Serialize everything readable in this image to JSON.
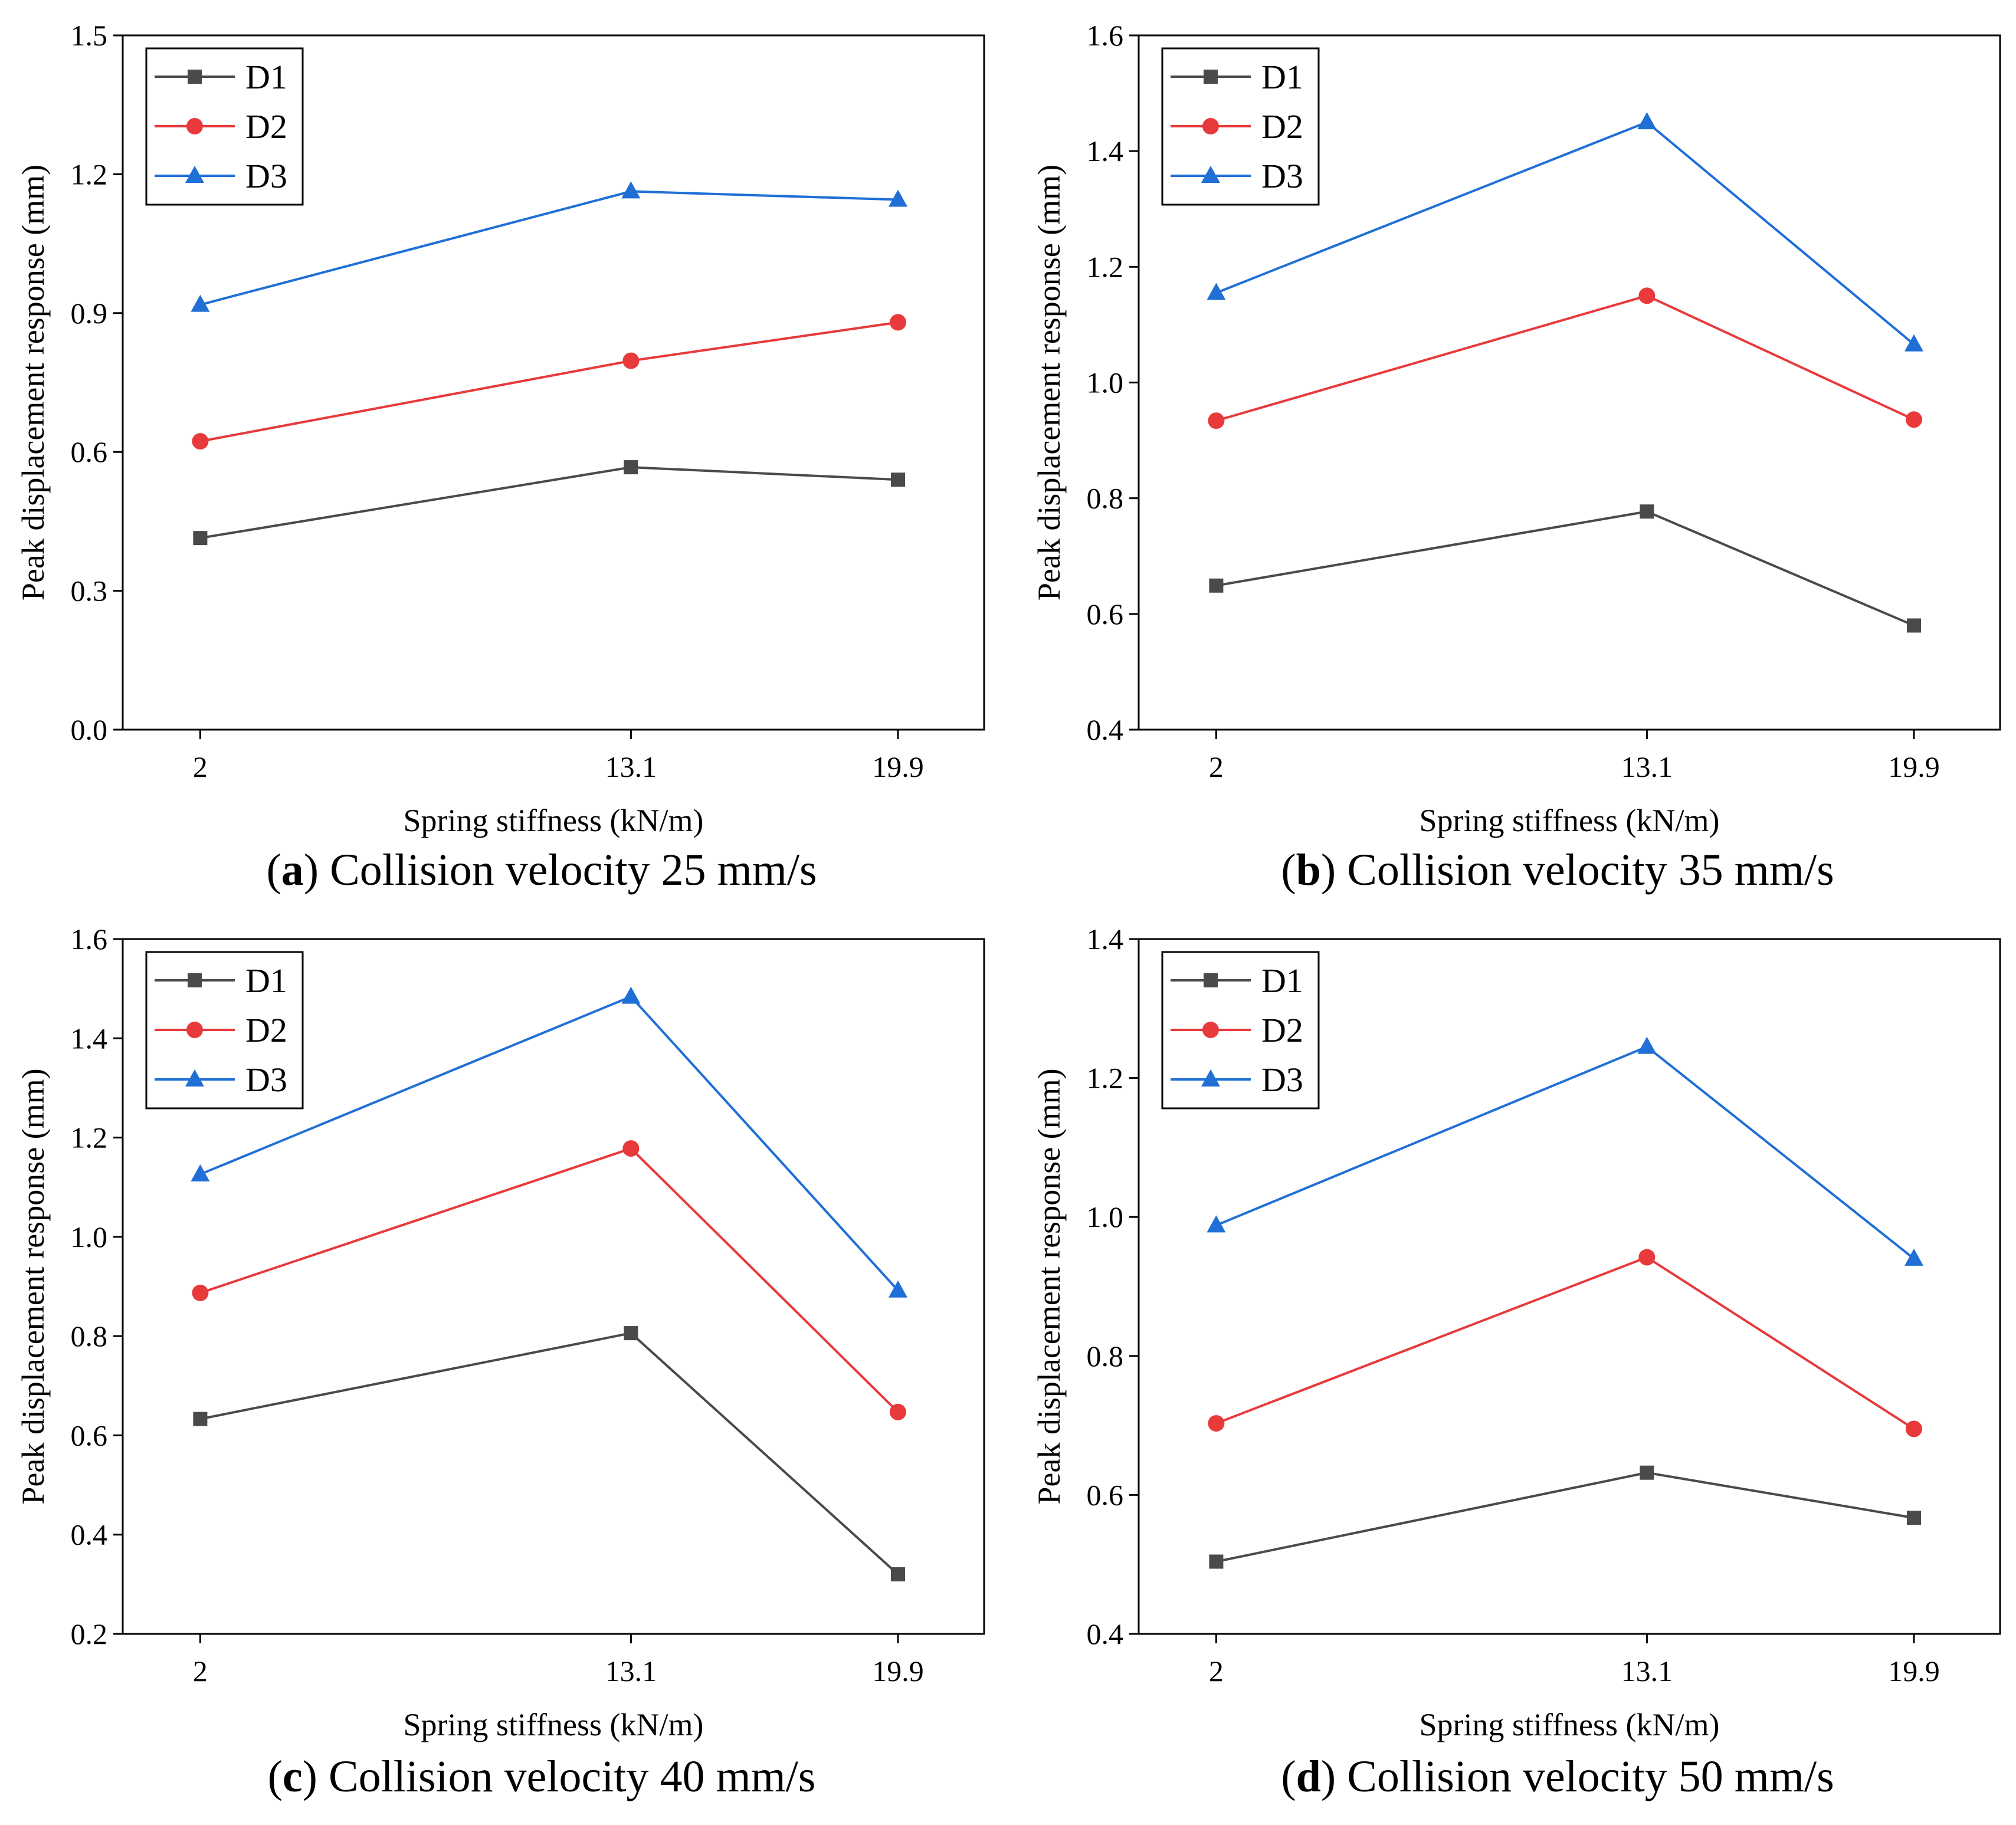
{
  "chart_data": [
    {
      "type": "line",
      "panel_letter": "a",
      "caption": "Collision velocity 25 mm/s",
      "xlabel": "Spring stiffness (kN/m)",
      "ylabel": "Peak displacement response (mm)",
      "categories": [
        "2",
        "13.1",
        "19.9"
      ],
      "x": [
        2,
        13.1,
        19.9
      ],
      "ylim": [
        0.0,
        1.5
      ],
      "yticks": [
        "0.0",
        "0.3",
        "0.6",
        "0.9",
        "1.2",
        "1.5"
      ],
      "legend_position": "top-left",
      "series": [
        {
          "name": "D1",
          "values": [
            0.414,
            0.567,
            0.54
          ]
        },
        {
          "name": "D2",
          "values": [
            0.623,
            0.797,
            0.88
          ]
        },
        {
          "name": "D3",
          "values": [
            0.918,
            1.163,
            1.145
          ]
        }
      ]
    },
    {
      "type": "line",
      "panel_letter": "b",
      "caption": "Collision velocity 35 mm/s",
      "xlabel": "Spring stiffness (kN/m)",
      "ylabel": "Peak displacement response (mm)",
      "categories": [
        "2",
        "13.1",
        "19.9"
      ],
      "x": [
        2,
        13.1,
        19.9
      ],
      "ylim": [
        0.4,
        1.6
      ],
      "yticks": [
        "0.4",
        "0.6",
        "0.8",
        "1.0",
        "1.2",
        "1.4",
        "1.6"
      ],
      "legend_position": "top-left",
      "series": [
        {
          "name": "D1",
          "values": [
            0.649,
            0.777,
            0.58
          ]
        },
        {
          "name": "D2",
          "values": [
            0.934,
            1.15,
            0.936
          ]
        },
        {
          "name": "D3",
          "values": [
            1.155,
            1.45,
            1.066
          ]
        }
      ]
    },
    {
      "type": "line",
      "panel_letter": "c",
      "caption": "Collision velocity 40 mm/s",
      "xlabel": "Spring stiffness (kN/m)",
      "ylabel": "Peak displacement response (mm)",
      "categories": [
        "2",
        "13.1",
        "19.9"
      ],
      "x": [
        2,
        13.1,
        19.9
      ],
      "ylim": [
        0.2,
        1.6
      ],
      "yticks": [
        "0.2",
        "0.4",
        "0.6",
        "0.8",
        "1.0",
        "1.2",
        "1.4",
        "1.6"
      ],
      "legend_position": "top-left",
      "series": [
        {
          "name": "D1",
          "values": [
            0.633,
            0.806,
            0.32
          ]
        },
        {
          "name": "D2",
          "values": [
            0.887,
            1.178,
            0.647
          ]
        },
        {
          "name": "D3",
          "values": [
            1.126,
            1.484,
            0.892
          ]
        }
      ]
    },
    {
      "type": "line",
      "panel_letter": "d",
      "caption": "Collision velocity 50 mm/s",
      "xlabel": "Spring stiffness (kN/m)",
      "ylabel": "Peak displacement response (mm)",
      "categories": [
        "2",
        "13.1",
        "19.9"
      ],
      "x": [
        2,
        13.1,
        19.9
      ],
      "ylim": [
        0.4,
        1.4
      ],
      "yticks": [
        "0.4",
        "0.6",
        "0.8",
        "1.0",
        "1.2",
        "1.4"
      ],
      "legend_position": "top-left",
      "series": [
        {
          "name": "D1",
          "values": [
            0.504,
            0.632,
            0.567
          ]
        },
        {
          "name": "D2",
          "values": [
            0.703,
            0.942,
            0.695
          ]
        },
        {
          "name": "D3",
          "values": [
            0.988,
            1.245,
            0.94
          ]
        }
      ]
    }
  ],
  "series_styles": [
    {
      "name": "D1",
      "color": "#4a4a4a",
      "marker": "square"
    },
    {
      "name": "D2",
      "color": "#e8393b",
      "marker": "circle"
    },
    {
      "name": "D3",
      "color": "#1f6fd6",
      "marker": "triangle"
    }
  ]
}
